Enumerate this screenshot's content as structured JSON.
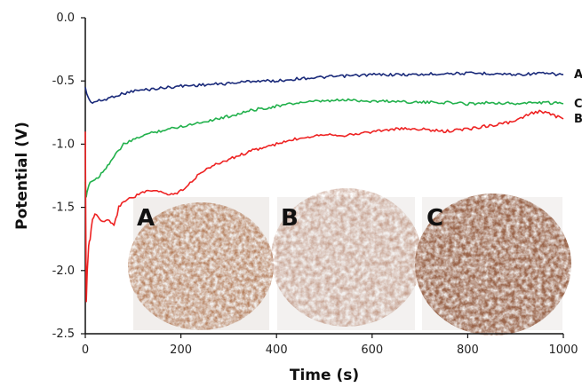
{
  "chart_data": {
    "type": "line",
    "title": "",
    "xlabel": "Time (s)",
    "ylabel": "Potential (V)",
    "xlim": [
      0,
      1000
    ],
    "ylim": [
      -2.5,
      0.0
    ],
    "x_ticks": [
      0,
      200,
      400,
      600,
      800,
      1000
    ],
    "y_ticks": [
      0.0,
      -0.5,
      -1.0,
      -1.5,
      -2.0,
      -2.5
    ],
    "x_tick_labels": [
      "0",
      "200",
      "400",
      "600",
      "800",
      "1000"
    ],
    "y_tick_labels": [
      "0.0",
      "-0.5",
      "-1.0",
      "-1.5",
      "-2.0",
      "-2.5"
    ],
    "grid": false,
    "series": [
      {
        "name": "A",
        "color": "#1a2a7a",
        "x": [
          0,
          3,
          8,
          15,
          25,
          40,
          60,
          80,
          100,
          150,
          200,
          250,
          300,
          350,
          400,
          450,
          500,
          550,
          600,
          650,
          700,
          750,
          800,
          850,
          900,
          950,
          1000
        ],
        "y": [
          -0.55,
          -0.6,
          -0.65,
          -0.67,
          -0.66,
          -0.65,
          -0.62,
          -0.6,
          -0.58,
          -0.56,
          -0.54,
          -0.53,
          -0.52,
          -0.5,
          -0.5,
          -0.48,
          -0.47,
          -0.46,
          -0.45,
          -0.45,
          -0.45,
          -0.44,
          -0.44,
          -0.44,
          -0.45,
          -0.44,
          -0.45
        ]
      },
      {
        "name": "C",
        "color": "#22b14c",
        "x": [
          0,
          2,
          5,
          10,
          20,
          30,
          40,
          50,
          60,
          70,
          80,
          100,
          120,
          150,
          200,
          250,
          300,
          350,
          400,
          450,
          500,
          550,
          600,
          650,
          700,
          750,
          800,
          850,
          900,
          950,
          1000
        ],
        "y": [
          -1.3,
          -1.42,
          -1.35,
          -1.3,
          -1.28,
          -1.25,
          -1.2,
          -1.15,
          -1.1,
          -1.05,
          -1.0,
          -0.97,
          -0.93,
          -0.9,
          -0.86,
          -0.82,
          -0.78,
          -0.73,
          -0.7,
          -0.67,
          -0.66,
          -0.65,
          -0.66,
          -0.66,
          -0.67,
          -0.67,
          -0.68,
          -0.67,
          -0.68,
          -0.67,
          -0.68
        ]
      },
      {
        "name": "B",
        "color": "#ee2222",
        "x": [
          0,
          2,
          4,
          7,
          10,
          15,
          20,
          30,
          40,
          50,
          60,
          70,
          80,
          100,
          120,
          150,
          180,
          200,
          250,
          300,
          350,
          400,
          450,
          500,
          550,
          600,
          650,
          700,
          750,
          800,
          850,
          900,
          930,
          950,
          970,
          1000
        ],
        "y": [
          -0.9,
          -2.25,
          -2.0,
          -1.8,
          -1.75,
          -1.6,
          -1.55,
          -1.6,
          -1.62,
          -1.6,
          -1.65,
          -1.5,
          -1.45,
          -1.42,
          -1.38,
          -1.37,
          -1.4,
          -1.37,
          -1.2,
          -1.12,
          -1.05,
          -1.0,
          -0.95,
          -0.92,
          -0.93,
          -0.9,
          -0.88,
          -0.88,
          -0.9,
          -0.88,
          -0.85,
          -0.82,
          -0.76,
          -0.74,
          -0.76,
          -0.8
        ]
      }
    ],
    "inset_labels": [
      "A",
      "B",
      "C"
    ]
  }
}
